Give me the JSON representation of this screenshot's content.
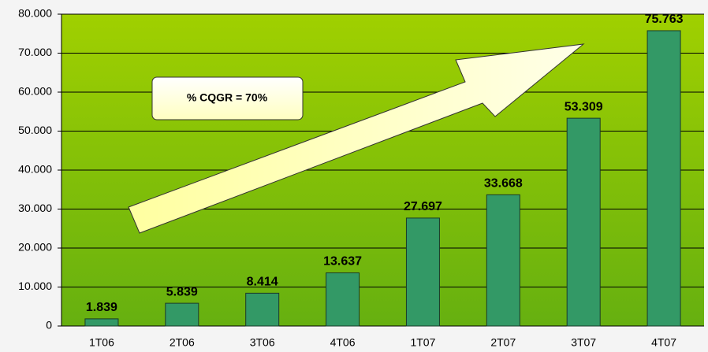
{
  "chart_data": {
    "type": "bar",
    "categories": [
      "1T06",
      "2T06",
      "3T06",
      "4T06",
      "1T07",
      "2T07",
      "3T07",
      "4T07"
    ],
    "values": [
      1839,
      5839,
      8414,
      13637,
      27697,
      33668,
      53309,
      75763
    ],
    "value_labels": [
      "1.839",
      "5.839",
      "8.414",
      "13.637",
      "27.697",
      "33.668",
      "53.309",
      "75.763"
    ],
    "color": "#339966",
    "ylim": [
      0,
      80000
    ],
    "yticks": [
      0,
      {
        "value": 10000,
        "label": "10.000"
      },
      {
        "value": 20000,
        "label": "20.000"
      },
      {
        "value": 30000,
        "label": "30.000"
      },
      {
        "value": 40000,
        "label": "40.000"
      },
      {
        "value": 50000,
        "label": "50.000"
      },
      {
        "value": 60000,
        "label": "60.000"
      },
      {
        "value": 70000,
        "label": "70.000"
      },
      {
        "value": 80000,
        "label": "80.000"
      }
    ],
    "grid": true,
    "annotation": "% CQGR = 70%"
  }
}
